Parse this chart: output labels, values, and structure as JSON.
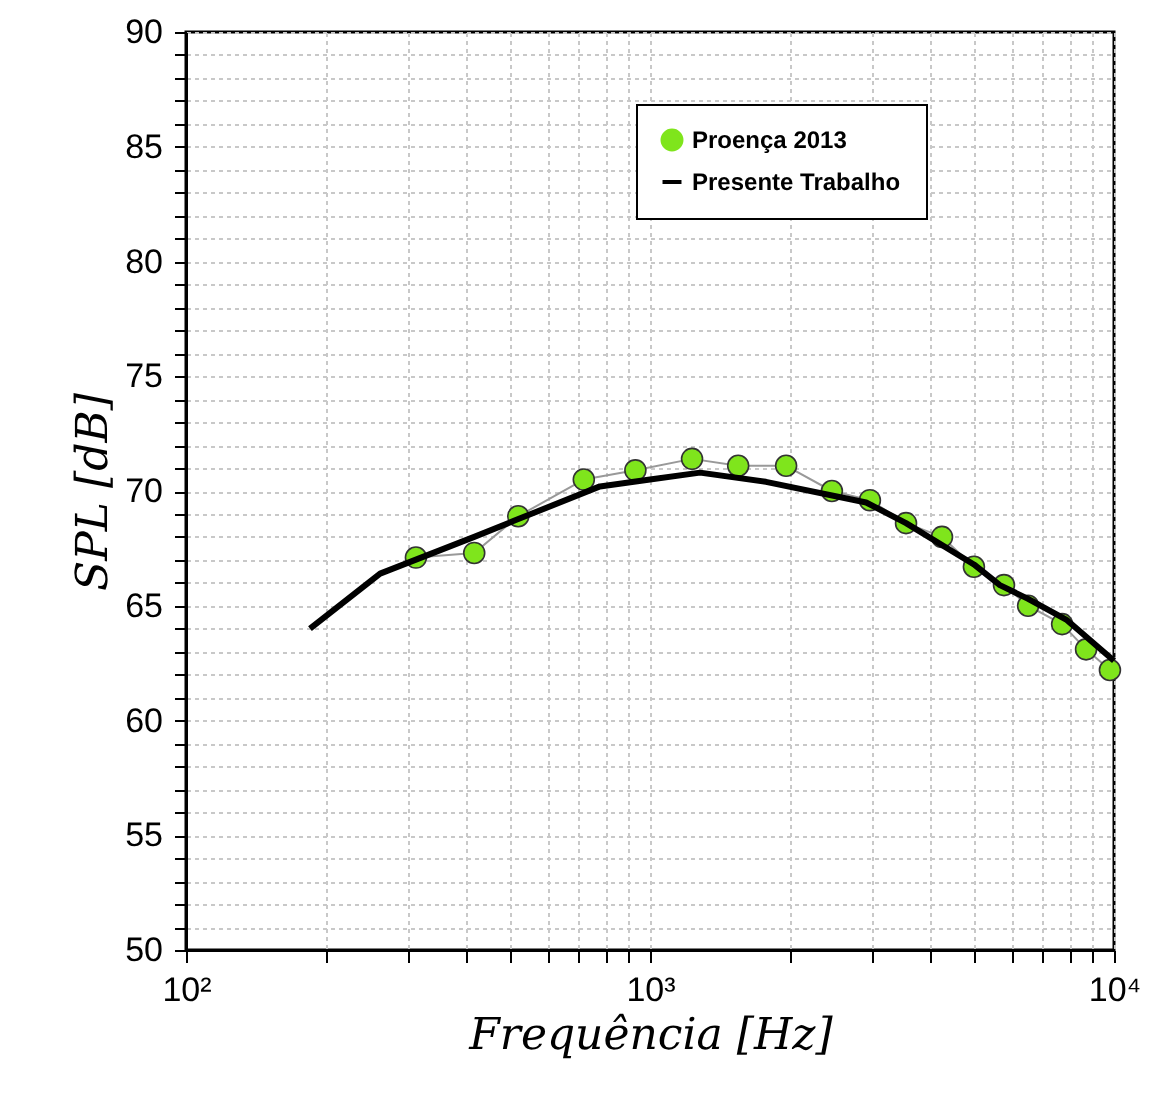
{
  "chart_data": {
    "type": "line",
    "xlabel": "Frequência [Hz]",
    "ylabel": "SPL [dB]",
    "log": "x",
    "xlim": [
      100,
      10000
    ],
    "ylim": [
      50,
      90
    ],
    "xticks": [
      {
        "value": 100,
        "label": "10²"
      },
      {
        "value": 200,
        "label": null
      },
      {
        "value": 300,
        "label": null
      },
      {
        "value": 400,
        "label": null
      },
      {
        "value": 500,
        "label": null
      },
      {
        "value": 600,
        "label": null
      },
      {
        "value": 700,
        "label": null
      },
      {
        "value": 800,
        "label": null
      },
      {
        "value": 900,
        "label": null
      },
      {
        "value": 1000,
        "label": "10³"
      },
      {
        "value": 2000,
        "label": null
      },
      {
        "value": 3000,
        "label": null
      },
      {
        "value": 4000,
        "label": null
      },
      {
        "value": 5000,
        "label": null
      },
      {
        "value": 6000,
        "label": null
      },
      {
        "value": 7000,
        "label": null
      },
      {
        "value": 8000,
        "label": null
      },
      {
        "value": 9000,
        "label": null
      },
      {
        "value": 10000,
        "label": "10⁴"
      }
    ],
    "yticks": [
      50,
      {
        "value": 51,
        "label": null
      },
      {
        "value": 52,
        "label": null
      },
      {
        "value": 53,
        "label": null
      },
      {
        "value": 54,
        "label": null
      },
      55,
      {
        "value": 56,
        "label": null
      },
      {
        "value": 57,
        "label": null
      },
      {
        "value": 58,
        "label": null
      },
      {
        "value": 59,
        "label": null
      },
      60,
      {
        "value": 61,
        "label": null
      },
      {
        "value": 62,
        "label": null
      },
      {
        "value": 63,
        "label": null
      },
      {
        "value": 64,
        "label": null
      },
      65,
      {
        "value": 66,
        "label": null
      },
      {
        "value": 67,
        "label": null
      },
      {
        "value": 68,
        "label": null
      },
      {
        "value": 69,
        "label": null
      },
      70,
      {
        "value": 71,
        "label": null
      },
      {
        "value": 72,
        "label": null
      },
      {
        "value": 73,
        "label": null
      },
      {
        "value": 74,
        "label": null
      },
      75,
      {
        "value": 76,
        "label": null
      },
      {
        "value": 77,
        "label": null
      },
      {
        "value": 78,
        "label": null
      },
      {
        "value": 79,
        "label": null
      },
      80,
      {
        "value": 81,
        "label": null
      },
      {
        "value": 82,
        "label": null
      },
      {
        "value": 83,
        "label": null
      },
      {
        "value": 84,
        "label": null
      },
      85,
      {
        "value": 86,
        "label": null
      },
      {
        "value": 87,
        "label": null
      },
      {
        "value": 88,
        "label": null
      },
      {
        "value": 89,
        "label": null
      },
      90
    ],
    "grid": true,
    "legend": "top right",
    "series": [
      {
        "name": "Proença 2013",
        "marker": "circle",
        "color": "#7fe51c",
        "x": [
          313,
          418,
          520,
          720,
          930,
          1232,
          1549,
          1965,
          2466,
          2978,
          3563,
          4259,
          4990,
          5793,
          6530,
          7730,
          8706,
          9800
        ],
        "values": [
          67.1,
          67.3,
          68.9,
          70.5,
          70.9,
          71.4,
          71.1,
          71.1,
          70.0,
          69.6,
          68.6,
          68.0,
          66.7,
          65.9,
          65.0,
          64.2,
          63.1,
          62.2
        ]
      },
      {
        "name": "Presente Trabalho",
        "marker": "none",
        "color": "#000000",
        "x": [
          185,
          262,
          418,
          509,
          780,
          1000,
          1282,
          1778,
          2923,
          3563,
          4990,
          5675,
          6530,
          7888,
          10000
        ],
        "values": [
          64.0,
          66.4,
          68.0,
          68.7,
          70.2,
          70.5,
          70.8,
          70.4,
          69.5,
          68.6,
          66.8,
          65.9,
          65.3,
          64.4,
          62.6
        ]
      }
    ]
  }
}
